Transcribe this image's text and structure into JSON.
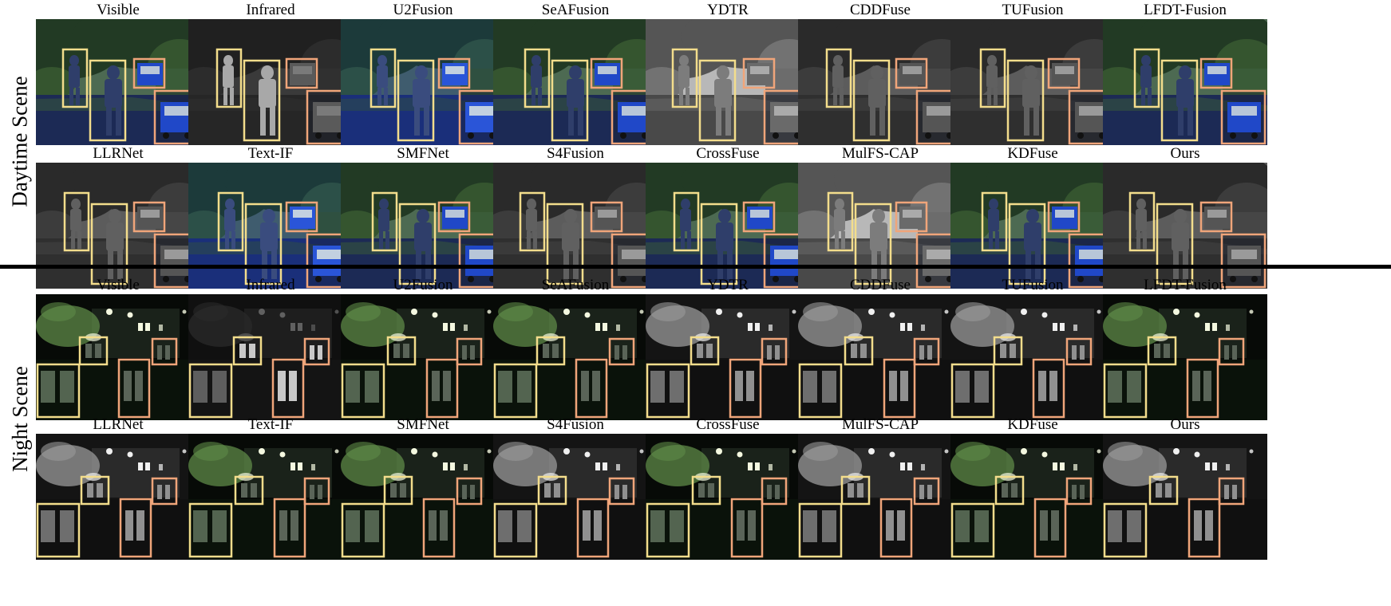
{
  "scenes": [
    {
      "label": "Daytime Scene",
      "type": "day",
      "rows": [
        [
          {
            "label": "Visible",
            "style": "color"
          },
          {
            "label": "Infrared",
            "style": "ir"
          },
          {
            "label": "U2Fusion",
            "style": "blue"
          },
          {
            "label": "SeAFusion",
            "style": "color"
          },
          {
            "label": "YDTR",
            "style": "grayLight"
          },
          {
            "label": "CDDFuse",
            "style": "gray"
          },
          {
            "label": "TUFusion",
            "style": "gray"
          },
          {
            "label": "LFDT-Fusion",
            "style": "color"
          }
        ],
        [
          {
            "label": "LLRNet",
            "style": "gray"
          },
          {
            "label": "Text-IF",
            "style": "blue"
          },
          {
            "label": "SMFNet",
            "style": "color"
          },
          {
            "label": "S4Fusion",
            "style": "gray"
          },
          {
            "label": "CrossFuse",
            "style": "color"
          },
          {
            "label": "MulFS-CAP",
            "style": "grayLight"
          },
          {
            "label": "KDFuse",
            "style": "color"
          },
          {
            "label": "Ours",
            "style": "gray"
          }
        ]
      ]
    },
    {
      "label": "Night Scene",
      "type": "night",
      "rows": [
        [
          {
            "label": "Visible",
            "style": "nightColor"
          },
          {
            "label": "Infrared",
            "style": "nightIR"
          },
          {
            "label": "U2Fusion",
            "style": "nightColor"
          },
          {
            "label": "SeAFusion",
            "style": "nightColor"
          },
          {
            "label": "YDTR",
            "style": "nightGray"
          },
          {
            "label": "CDDFuse",
            "style": "nightGray"
          },
          {
            "label": "TUFusion",
            "style": "nightGray"
          },
          {
            "label": "LFDT-Fusion",
            "style": "nightColor"
          }
        ],
        [
          {
            "label": "LLRNet",
            "style": "nightGray"
          },
          {
            "label": "Text-IF",
            "style": "nightColor"
          },
          {
            "label": "SMFNet",
            "style": "nightColor"
          },
          {
            "label": "S4Fusion",
            "style": "nightGray"
          },
          {
            "label": "CrossFuse",
            "style": "nightColor"
          },
          {
            "label": "MulFS-CAP",
            "style": "nightGray"
          },
          {
            "label": "KDFuse",
            "style": "nightColor"
          },
          {
            "label": "Ours",
            "style": "nightGray"
          }
        ]
      ]
    }
  ],
  "colors": {
    "box_yellow": "#f3dd8c",
    "box_orange": "#f0a57a",
    "divider": "#000000"
  }
}
